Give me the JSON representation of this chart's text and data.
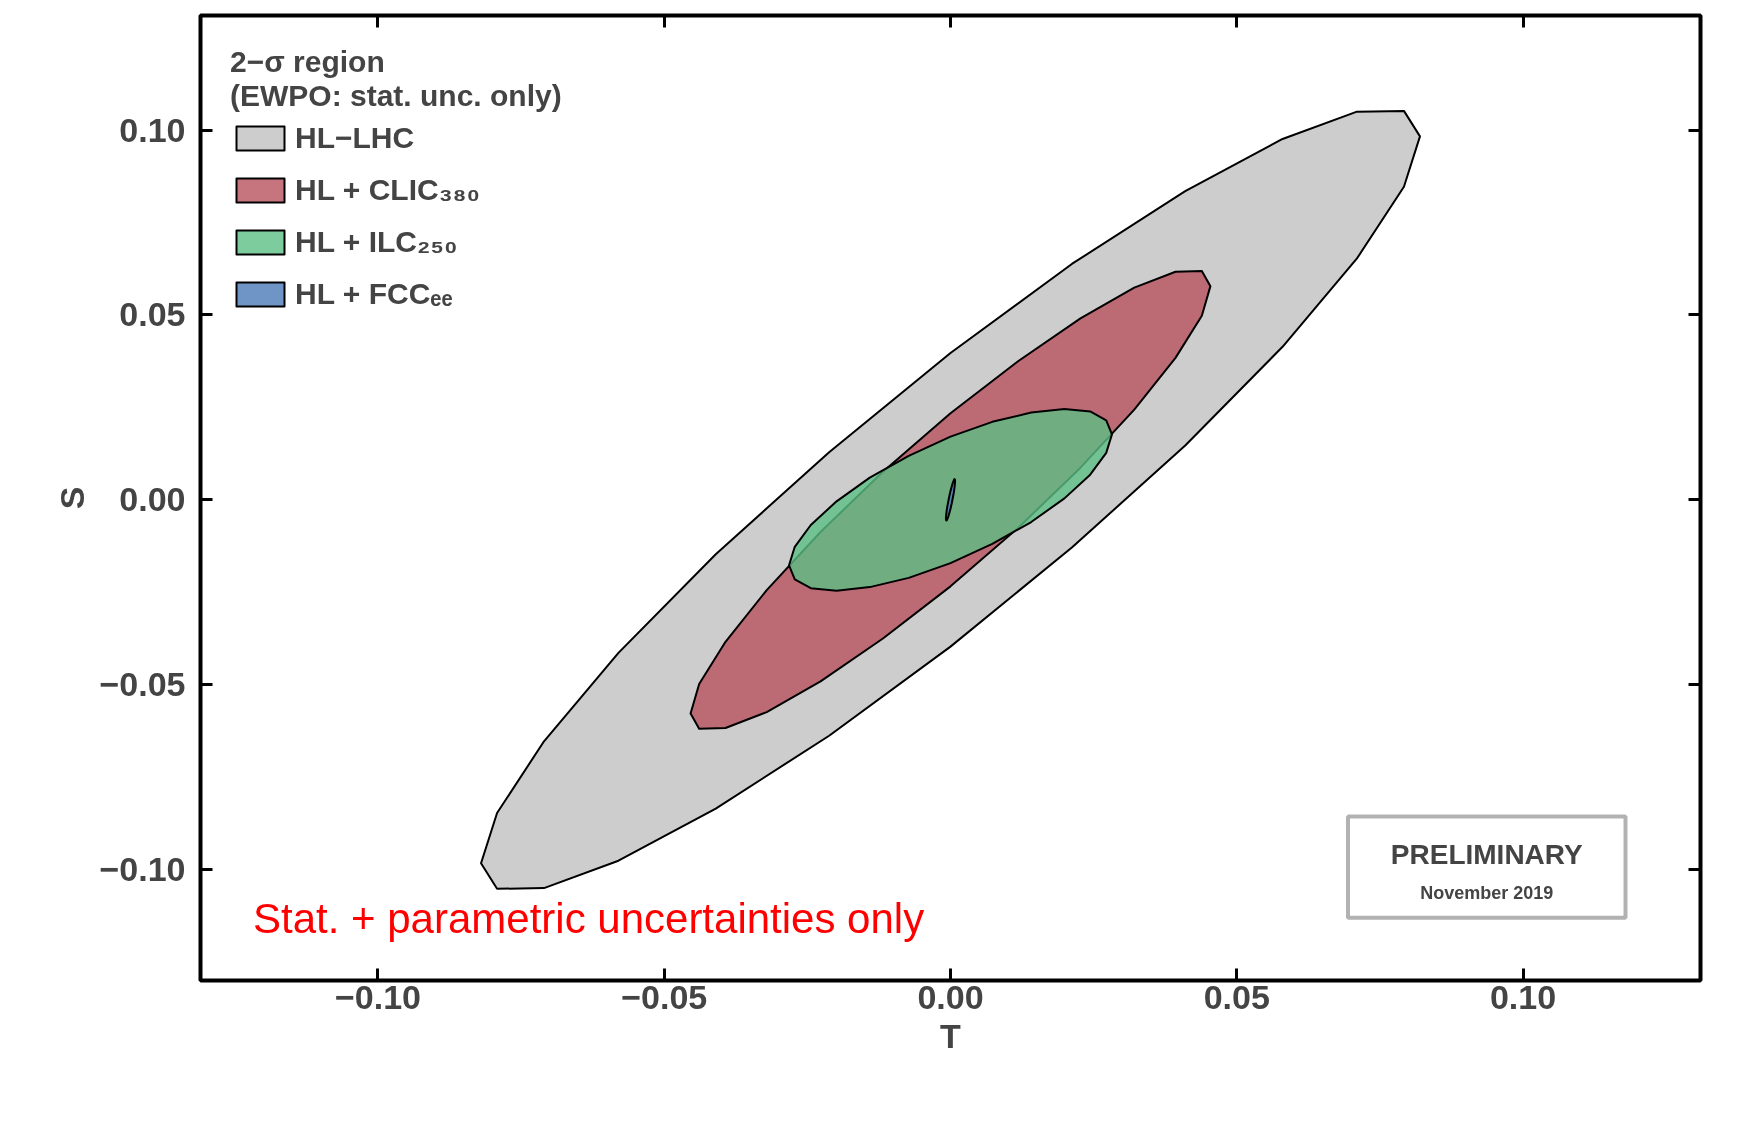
{
  "chart_data": {
    "type": "area",
    "xlabel": "T",
    "ylabel": "S",
    "legend_title": "2−σ region\n(EWPO: stat. unc. only)",
    "legend": "top left",
    "grid": false,
    "xlim": [
      -0.131,
      0.131
    ],
    "ylim": [
      -0.13,
      0.131
    ],
    "xticks": [
      {
        "value": -0.1,
        "label": "−0.10"
      },
      {
        "value": -0.05,
        "label": "−0.05"
      },
      {
        "value": 0,
        "label": "0.00"
      },
      {
        "value": 0.05,
        "label": "0.05"
      },
      {
        "value": 0.1,
        "label": "0.10"
      }
    ],
    "yticks": [
      {
        "value": -0.1,
        "label": "−0.10"
      },
      {
        "value": -0.05,
        "label": "−0.05"
      },
      {
        "value": 0,
        "label": "0.00"
      },
      {
        "value": 0.05,
        "label": "0.05"
      },
      {
        "value": 0.1,
        "label": "0.10"
      }
    ],
    "annotations": [
      "Stat. + parametric uncertainties only",
      "PRELIMINARY",
      "November 2019"
    ],
    "series": [
      {
        "name": "HL−LHC",
        "color": "#c0c0c0",
        "x": [
          0.082,
          0.0792,
          0.071,
          0.058,
          0.041,
          0.0212,
          0,
          -0.0212,
          -0.041,
          -0.058,
          -0.071,
          -0.0792,
          -0.082,
          -0.0792,
          -0.071,
          -0.058,
          -0.041,
          -0.0212,
          0,
          0.0212,
          0.041,
          0.058,
          0.071,
          0.0792
        ],
        "values": [
          0.0983,
          0.1052,
          0.105,
          0.0976,
          0.0835,
          0.0638,
          0.0397,
          0.0129,
          -0.0147,
          -0.0414,
          -0.0653,
          -0.0847,
          -0.0983,
          -0.1052,
          -0.105,
          -0.0976,
          -0.0835,
          -0.0638,
          -0.0397,
          -0.0129,
          0.0147,
          0.0414,
          0.0653,
          0.0847
        ]
      },
      {
        "name": "HL + CLIC₃₈₀",
        "color": "#b8525e",
        "x": [
          0.0454,
          0.0439,
          0.0393,
          0.0321,
          0.0227,
          0.0118,
          0,
          -0.0118,
          -0.0227,
          -0.0321,
          -0.0393,
          -0.0439,
          -0.0454,
          -0.0439,
          -0.0393,
          -0.0321,
          -0.0227,
          -0.0118,
          0,
          0.0118,
          0.0227,
          0.0321,
          0.0393,
          0.0439
        ],
        "values": [
          0.0578,
          0.0619,
          0.0617,
          0.0574,
          0.0491,
          0.0375,
          0.0234,
          0.0076,
          -0.0087,
          -0.0244,
          -0.0384,
          -0.0498,
          -0.0578,
          -0.0619,
          -0.0617,
          -0.0574,
          -0.0491,
          -0.0375,
          -0.0234,
          -0.0076,
          0.0087,
          0.0244,
          0.0384,
          0.0498
        ]
      },
      {
        "name": "HL + ILC₂₅₀",
        "color": "#5cbf85",
        "x": [
          0.0282,
          0.0272,
          0.0244,
          0.0199,
          0.0141,
          0.0073,
          0,
          -0.0073,
          -0.0141,
          -0.0199,
          -0.0244,
          -0.0272,
          -0.0282,
          -0.0272,
          -0.0244,
          -0.0199,
          -0.0141,
          -0.0073,
          0,
          0.0073,
          0.0141,
          0.0199,
          0.0244,
          0.0272
        ],
        "values": [
          0.0177,
          0.0215,
          0.0239,
          0.0246,
          0.0236,
          0.0211,
          0.0171,
          0.0119,
          0.006,
          -0.0004,
          -0.0068,
          -0.0127,
          -0.0177,
          -0.0215,
          -0.0239,
          -0.0246,
          -0.0236,
          -0.0211,
          -0.0171,
          -0.0119,
          -0.006,
          0.0004,
          0.0068,
          0.0127
        ]
      },
      {
        "name": "HL + FCCₑₑ",
        "color": "#4a7ab8",
        "x": [
          0.0008,
          0.00077,
          0.00069,
          0.00057,
          0.0004,
          0.00021,
          0,
          -0.00021,
          -0.0004,
          -0.00057,
          -0.00069,
          -0.00077,
          -0.0008,
          -0.00077,
          -0.00069,
          -0.00057,
          -0.0004,
          -0.00021,
          0,
          0.00021,
          0.0004,
          0.00057,
          0.00069,
          0.00077
        ],
        "values": [
          0.0051,
          0.0055,
          0.0056,
          0.0053,
          0.0046,
          0.0036,
          0.0024,
          0.001,
          -0.0005,
          -0.0019,
          -0.0032,
          -0.0043,
          -0.0051,
          -0.0055,
          -0.0056,
          -0.0053,
          -0.0046,
          -0.0036,
          -0.0024,
          -0.001,
          0.0005,
          0.0019,
          0.0032,
          0.0043
        ]
      }
    ]
  }
}
